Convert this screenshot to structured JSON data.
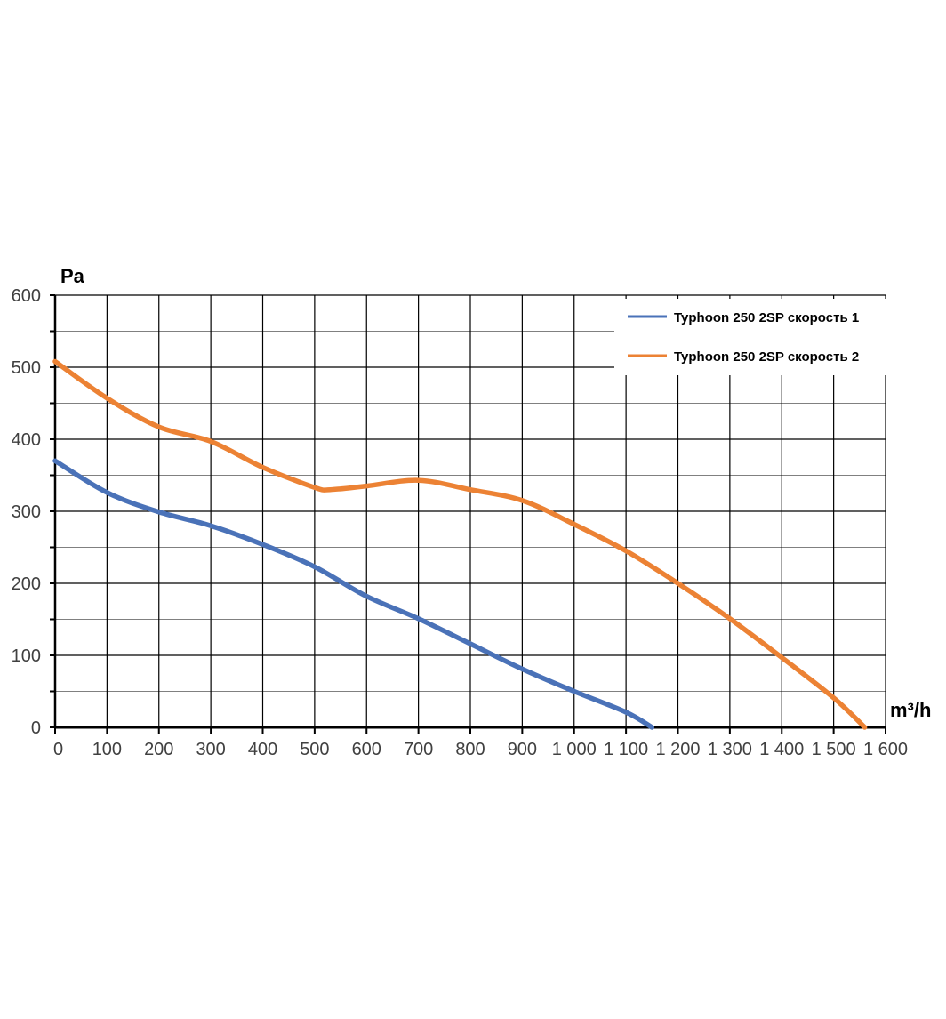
{
  "chart_data": {
    "type": "line",
    "ylabel": "Pa",
    "xlabel": "m³/h",
    "xlim": [
      0,
      1600
    ],
    "ylim": [
      0,
      600
    ],
    "x_major_step": 100,
    "y_major_step": 100,
    "y_minor_step": 50,
    "x_tick_labels": [
      "0",
      "100",
      "200",
      "300",
      "400",
      "500",
      "600",
      "700",
      "800",
      "900",
      "1 000",
      "1 100",
      "1 200",
      "1 300",
      "1 400",
      "1 500",
      "1 600"
    ],
    "y_tick_labels": [
      "0",
      "100",
      "200",
      "300",
      "400",
      "500",
      "600"
    ],
    "grid": true,
    "legend_position": "top-right",
    "series": [
      {
        "name": "Typhoon 250 2SP скорость 1",
        "color": "#4a72b8",
        "points": [
          [
            0,
            370
          ],
          [
            100,
            326
          ],
          [
            200,
            299
          ],
          [
            300,
            280
          ],
          [
            400,
            254
          ],
          [
            500,
            223
          ],
          [
            600,
            182
          ],
          [
            700,
            151
          ],
          [
            800,
            116
          ],
          [
            900,
            81
          ],
          [
            1000,
            50
          ],
          [
            1100,
            21
          ],
          [
            1150,
            0
          ]
        ]
      },
      {
        "name": "Typhoon 250 2SP скорость 2",
        "color": "#ec8234",
        "points": [
          [
            0,
            508
          ],
          [
            100,
            457
          ],
          [
            200,
            417
          ],
          [
            300,
            397
          ],
          [
            400,
            361
          ],
          [
            500,
            333
          ],
          [
            530,
            330
          ],
          [
            600,
            335
          ],
          [
            700,
            343
          ],
          [
            800,
            330
          ],
          [
            900,
            315
          ],
          [
            1000,
            282
          ],
          [
            1100,
            245
          ],
          [
            1200,
            200
          ],
          [
            1300,
            151
          ],
          [
            1400,
            97
          ],
          [
            1500,
            41
          ],
          [
            1560,
            0
          ]
        ]
      }
    ]
  }
}
